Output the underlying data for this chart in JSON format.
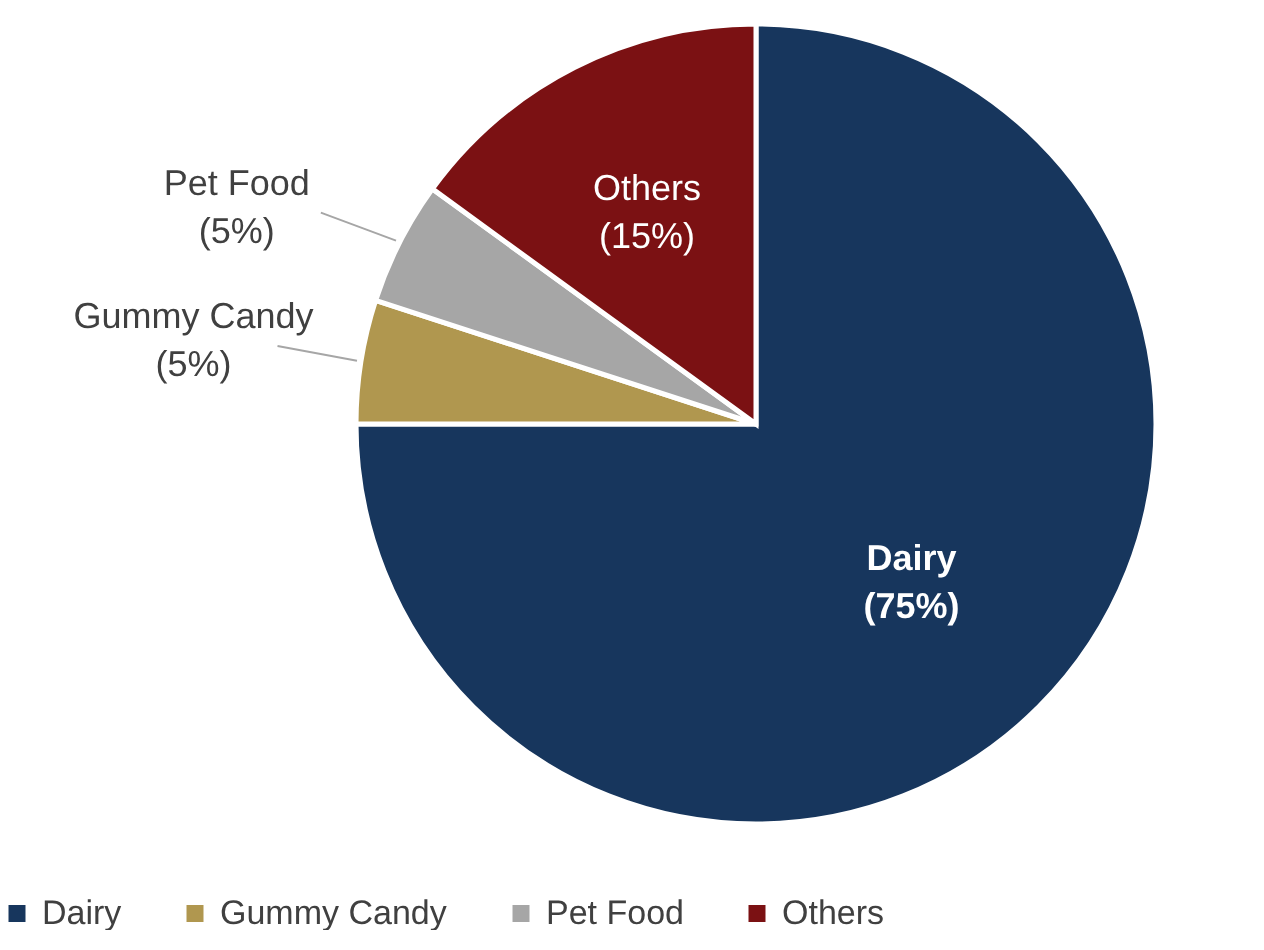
{
  "chart_data": {
    "type": "pie",
    "categories": [
      "Dairy",
      "Gummy Candy",
      "Pet Food",
      "Others"
    ],
    "values": [
      75,
      5,
      5,
      15
    ],
    "colors": [
      "#17365d",
      "#b0974f",
      "#a6a6a6",
      "#7b1113"
    ],
    "value_labels": [
      "(75%)",
      "(5%)",
      "(5%)",
      "(15%)"
    ],
    "legend": "bottom"
  }
}
